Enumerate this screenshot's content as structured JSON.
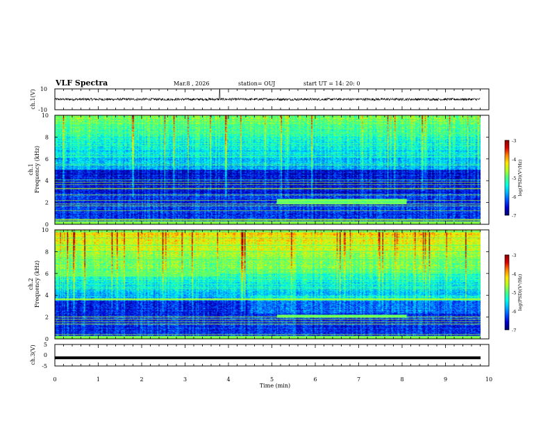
{
  "header": {
    "title": "VLF Spectra",
    "date": "Mar.8 , 2026",
    "station": "station= OUJ",
    "start_time": "start UT = 14: 20: 0"
  },
  "chart_data": [
    {
      "type": "line",
      "name": "ch1-waveform",
      "ylabel": "ch.1(V)",
      "ylim": [
        -10,
        10
      ],
      "y_tick_labels": [
        "10",
        "-10"
      ],
      "baseline_value": 0,
      "noise_amplitude": 1.2,
      "spike_times_min": [
        3.8
      ]
    },
    {
      "type": "heatmap",
      "name": "ch1-spectrogram",
      "ylabel_line1": "ch.1",
      "ylabel_line2": "Frequency (kHz)",
      "ylim": [
        0,
        10
      ],
      "y_ticks": [
        0,
        2,
        4,
        6,
        8,
        10
      ],
      "y_tick_labels": [
        "0",
        "2",
        "4",
        "6",
        "8",
        "10"
      ],
      "features": [
        {
          "label": "band",
          "t0": 5.1,
          "t1": 8.1,
          "f0": 1.8,
          "f1": 2.3
        }
      ]
    },
    {
      "type": "heatmap",
      "name": "ch2-spectrogram",
      "ylabel_line1": "ch.2",
      "ylabel_line2": "Frequency (kHz)",
      "ylim": [
        0,
        10
      ],
      "y_ticks": [
        0,
        2,
        4,
        6,
        8,
        10
      ],
      "y_tick_labels": [
        "0",
        "2",
        "4",
        "6",
        "8",
        "10"
      ],
      "features": [
        {
          "label": "band",
          "t0": 5.1,
          "t1": 8.1,
          "f0": 1.9,
          "f1": 2.2
        },
        {
          "label": "hiss",
          "t0": 0.0,
          "t1": 3.8,
          "f0": 5.7,
          "f1": 6.2
        }
      ]
    },
    {
      "type": "line",
      "name": "ch3-waveform",
      "ylabel": "ch.3(V)",
      "ylim": [
        -5,
        5
      ],
      "y_tick_labels": [
        "5",
        "0",
        "-5"
      ],
      "baseline_value": -1.2
    }
  ],
  "x_axis": {
    "xlabel": "Time (min)",
    "xlim": [
      0,
      10
    ],
    "ticks": [
      "0",
      "1",
      "2",
      "3",
      "4",
      "5",
      "6",
      "7",
      "8",
      "9",
      "10"
    ]
  },
  "colorbars": [
    {
      "label": "log(PSD)(V²/Hz)",
      "range": [
        -7,
        -3
      ],
      "tick_labels": [
        "-3",
        "-4",
        "-5",
        "-6",
        "-7"
      ]
    },
    {
      "label": "log(PSD)(V²/Hz)",
      "range": [
        -7,
        -3
      ],
      "tick_labels": [
        "-3",
        "-4",
        "-5",
        "-6",
        "-7"
      ]
    }
  ],
  "colors": {
    "axis": "#000000",
    "colormap": [
      "#00006e",
      "#0000d0",
      "#0050ff",
      "#00b4ff",
      "#00ffe6",
      "#46ff82",
      "#b4ff1e",
      "#ffe600",
      "#ff8200",
      "#dc0000",
      "#8c0000"
    ]
  }
}
